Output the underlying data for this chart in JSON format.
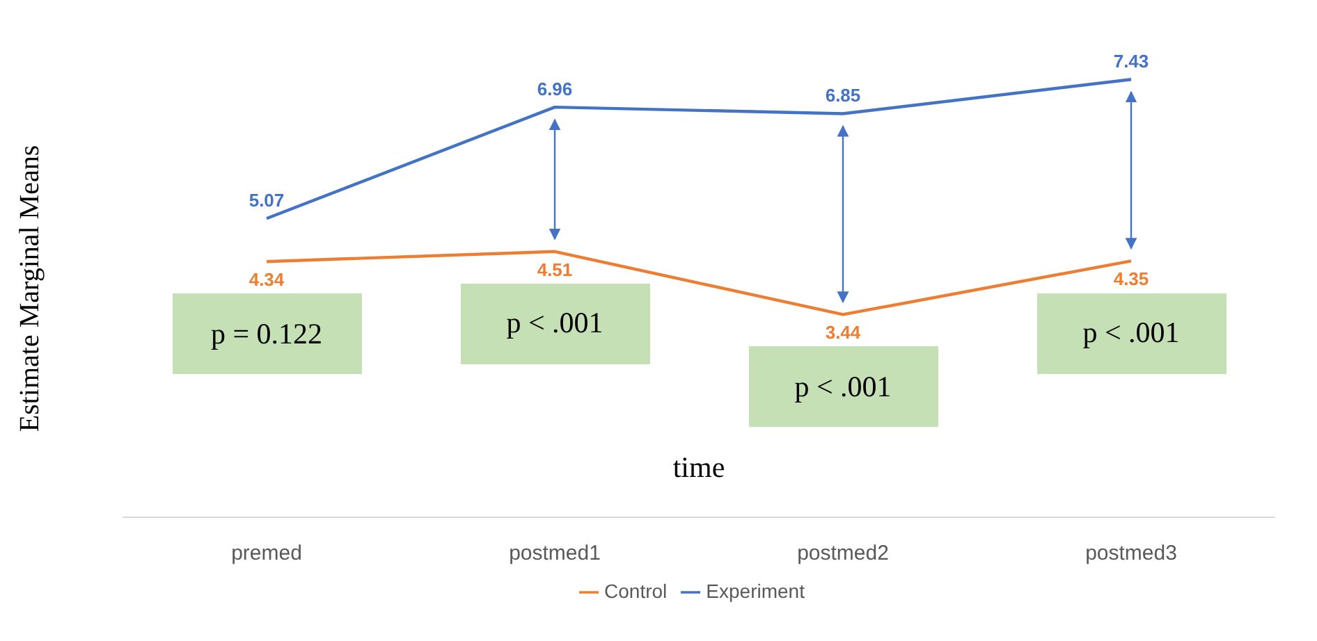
{
  "chart_data": {
    "type": "line",
    "xlabel": "time",
    "ylabel": "Estimate Marginal Means",
    "categories": [
      "premed",
      "postmed1",
      "postmed2",
      "postmed3"
    ],
    "series": [
      {
        "name": "Experiment",
        "color": "#4472c4",
        "values": [
          5.07,
          6.96,
          6.85,
          7.43
        ]
      },
      {
        "name": "Control",
        "color": "#ed7d31",
        "values": [
          4.34,
          4.51,
          3.44,
          4.35
        ]
      }
    ],
    "marker": "none",
    "tick_labels": "x",
    "data_labels": true,
    "line_style": "solid",
    "grid": false,
    "legend": "bottom",
    "annotations": [
      "p = 0.122",
      "p < .001",
      "p < .001",
      "p < .001"
    ]
  }
}
